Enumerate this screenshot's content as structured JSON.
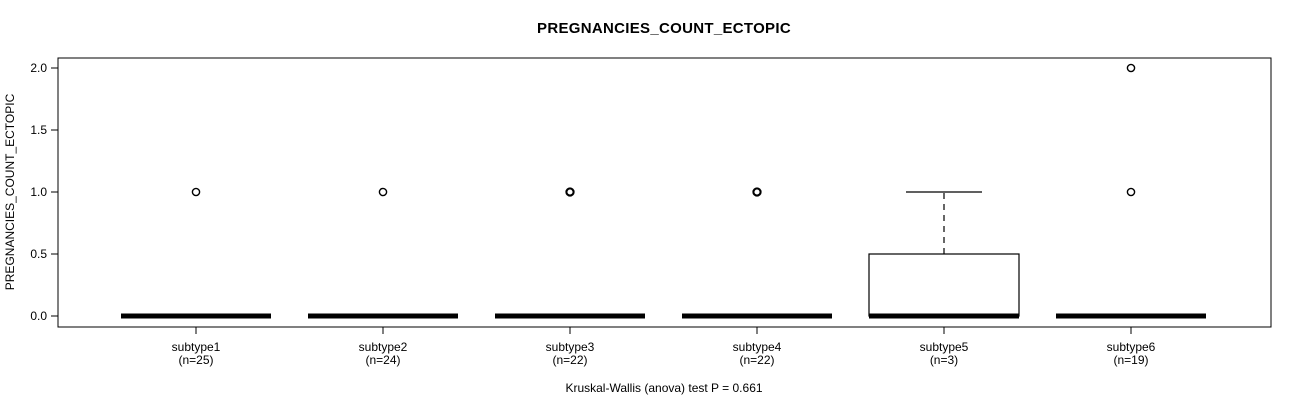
{
  "chart_data": {
    "type": "boxplot",
    "title": "PREGNANCIES_COUNT_ECTOPIC",
    "ylabel": "PREGNANCIES_COUNT_ECTOPIC",
    "xlabel": "",
    "footnote": "Kruskal-Wallis (anova) test P = 0.661",
    "ylim": [
      0,
      2
    ],
    "yticks": [
      0,
      0.5,
      1,
      1.5,
      2
    ],
    "ytick_labels": [
      "0.0",
      "0.5",
      "1.0",
      "1.5",
      "2.0"
    ],
    "grid": false,
    "legend": "none",
    "groups": [
      {
        "label": "subtype1",
        "n_label": "(n=25)",
        "n": 25,
        "whisker_low": 0,
        "q1": 0,
        "median": 0,
        "q3": 0,
        "whisker_high": 0,
        "outliers": [
          1
        ],
        "bold_outliers": false
      },
      {
        "label": "subtype2",
        "n_label": "(n=24)",
        "n": 24,
        "whisker_low": 0,
        "q1": 0,
        "median": 0,
        "q3": 0,
        "whisker_high": 0,
        "outliers": [
          1
        ],
        "bold_outliers": false
      },
      {
        "label": "subtype3",
        "n_label": "(n=22)",
        "n": 22,
        "whisker_low": 0,
        "q1": 0,
        "median": 0,
        "q3": 0,
        "whisker_high": 0,
        "outliers": [
          1
        ],
        "bold_outliers": true
      },
      {
        "label": "subtype4",
        "n_label": "(n=22)",
        "n": 22,
        "whisker_low": 0,
        "q1": 0,
        "median": 0,
        "q3": 0,
        "whisker_high": 0,
        "outliers": [
          1
        ],
        "bold_outliers": true
      },
      {
        "label": "subtype5",
        "n_label": "(n=3)",
        "n": 3,
        "whisker_low": 0,
        "q1": 0,
        "median": 0,
        "q3": 0.5,
        "whisker_high": 1,
        "outliers": [],
        "bold_outliers": false
      },
      {
        "label": "subtype6",
        "n_label": "(n=19)",
        "n": 19,
        "whisker_low": 0,
        "q1": 0,
        "median": 0,
        "q3": 0,
        "whisker_high": 0,
        "outliers": [
          1,
          2
        ],
        "bold_outliers": false
      }
    ],
    "colors": {
      "background": "#ffffff",
      "axis": "#000000",
      "box_stroke": "#000000",
      "median": "#000000",
      "text": "#000000"
    }
  }
}
